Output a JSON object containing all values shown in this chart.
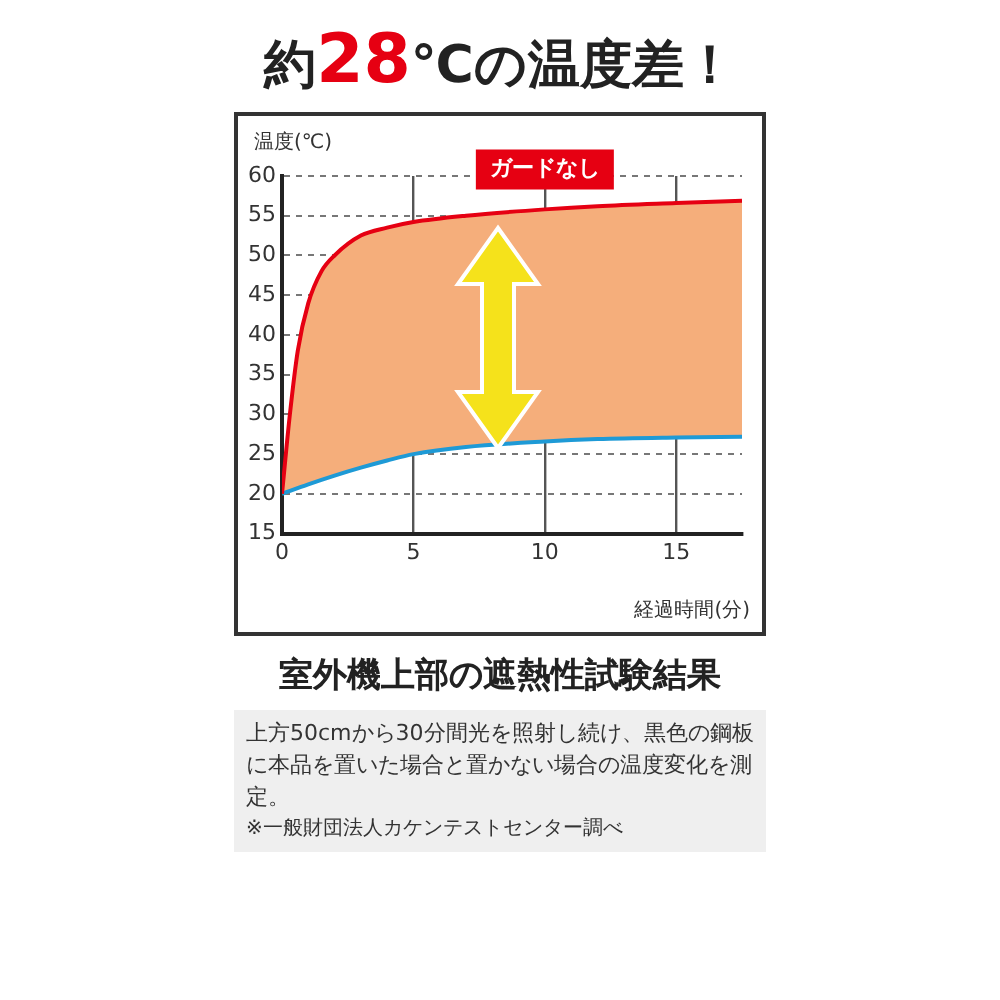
{
  "chart_data": {
    "type": "line",
    "title": "約28℃の温度差！",
    "subtitle": "室外機上部の遮熱性試験結果",
    "xlabel": "経過時間(分)",
    "ylabel": "温度(℃)",
    "xlim": [
      0,
      17.5
    ],
    "xticks": [
      0,
      5,
      10,
      15
    ],
    "ylim": [
      15,
      60
    ],
    "yticks": [
      15,
      20,
      25,
      30,
      35,
      40,
      45,
      50,
      55,
      60
    ],
    "grid": true,
    "series": [
      {
        "name": "ガードなし",
        "color": "#e60012",
        "x": [
          0,
          0.3,
          0.6,
          1,
          1.5,
          2,
          3,
          4,
          5,
          7,
          10,
          12,
          15,
          17.5
        ],
        "values": [
          20,
          30,
          38,
          44,
          48,
          50,
          52.5,
          53.5,
          54.2,
          55,
          55.8,
          56.2,
          56.6,
          56.9
        ]
      },
      {
        "color": "#1e9ad6",
        "x": [
          0,
          1,
          2,
          3,
          4,
          5,
          7,
          10,
          12,
          15,
          17.5
        ],
        "values": [
          20,
          21.2,
          22.3,
          23.3,
          24.2,
          25,
          25.9,
          26.6,
          26.9,
          27.1,
          27.2
        ]
      }
    ],
    "annotations": [
      "上方50cmから30分間光を照射し続け、黒色の鋼板に本品を置いた場合と置かない場合の温度変化を測定。",
      "※一般財団法人カケンテストセンター調べ"
    ]
  }
}
